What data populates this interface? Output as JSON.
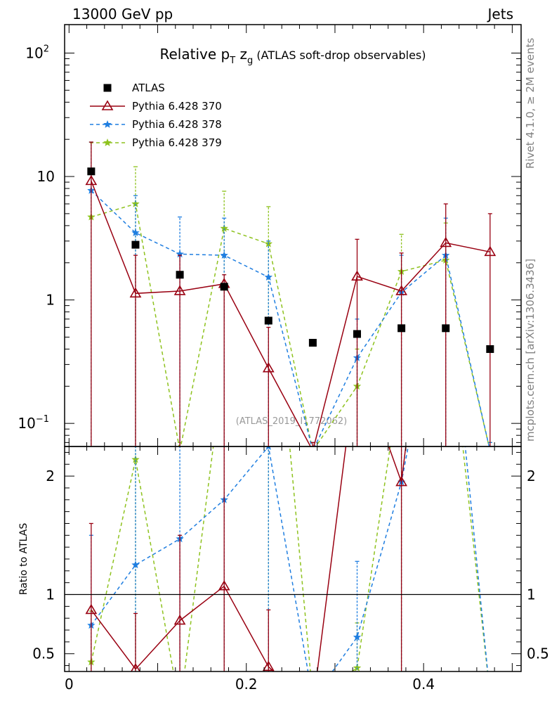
{
  "header": {
    "left": "13000 GeV pp",
    "right": "Jets"
  },
  "side_text": {
    "rivet": "Rivet 4.1.0, ≥ 2M events",
    "mcplots": "mcplots.cern.ch [arXiv:1306.3436]"
  },
  "colors": {
    "atlas": "#000000",
    "p370": "#990011",
    "p378": "#1f7ee0",
    "p379": "#8ec21e"
  },
  "chart_data": {
    "type": "scatter",
    "title": {
      "main": "Relative p",
      "sub": "T",
      "main2": " z",
      "sub2": "g",
      "rest": " (ATLAS soft-drop observables)"
    },
    "reference": "(ATLAS_2019_I1772062)",
    "xlim": [
      -0.005,
      0.51
    ],
    "x_ticks": [
      {
        "v": 0,
        "label": "0"
      },
      {
        "v": 0.2,
        "label": "0.2"
      },
      {
        "v": 0.4,
        "label": "0.4"
      }
    ],
    "top": {
      "scale": "log",
      "ylim": [
        0.065,
        170
      ],
      "y_tick_labels": [
        {
          "v": 0.1,
          "base": "10",
          "exp": "−1"
        },
        {
          "v": 1,
          "base": "1",
          "exp": ""
        },
        {
          "v": 10,
          "base": "10",
          "exp": ""
        },
        {
          "v": 100,
          "base": "10",
          "exp": "2"
        }
      ]
    },
    "ratio": {
      "ylabel": "Ratio to ATLAS",
      "ylim": [
        0.35,
        2.25
      ],
      "y_tick_labels": [
        {
          "v": 0.5,
          "label": "0.5"
        },
        {
          "v": 1,
          "label": "1"
        },
        {
          "v": 2,
          "label": "2"
        }
      ]
    },
    "x": [
      0.025,
      0.075,
      0.125,
      0.175,
      0.225,
      0.275,
      0.325,
      0.375,
      0.425,
      0.475
    ],
    "series": [
      {
        "key": "atlas",
        "name": "ATLAS",
        "marker": "square",
        "line": "none",
        "values": [
          11,
          2.8,
          1.6,
          1.28,
          0.68,
          0.45,
          0.53,
          0.59,
          0.59,
          0.4
        ],
        "err": [
          [
            0,
            0
          ],
          [
            0,
            0
          ],
          [
            0,
            0
          ],
          [
            0,
            0
          ],
          [
            0,
            0
          ],
          [
            0,
            0
          ],
          [
            0,
            0
          ],
          [
            0,
            0
          ],
          [
            0,
            0
          ],
          [
            0,
            0
          ]
        ],
        "ratio": [
          1,
          1,
          1,
          1,
          1,
          1,
          1,
          1,
          1,
          1
        ]
      },
      {
        "key": "p370",
        "name": "Pythia 6.428 370",
        "marker": "triangle",
        "line": "solid",
        "values": [
          9.2,
          1.13,
          1.18,
          1.35,
          0.28,
          0.06,
          1.55,
          1.18,
          2.9,
          2.45
        ],
        "err": [
          [
            0.01,
            19
          ],
          [
            0.01,
            2.3
          ],
          [
            0.01,
            2.3
          ],
          [
            0.01,
            1.6
          ],
          [
            0.01,
            0.6
          ],
          [
            0.05,
            0.07
          ],
          [
            0.01,
            3.1
          ],
          [
            0.01,
            2.4
          ],
          [
            0.01,
            6.0
          ],
          [
            0.01,
            5.0
          ]
        ],
        "ratio": [
          0.87,
          0.37,
          0.78,
          1.07,
          0.39,
          0.05,
          3.0,
          1.95,
          5.0,
          6.0
        ],
        "ratio_err": [
          [
            0.01,
            1.6
          ],
          [
            0.01,
            0.84
          ],
          [
            0.01,
            1.5
          ],
          [
            0.01,
            2.4
          ],
          [
            0.01,
            0.87
          ],
          null,
          null,
          [
            0.01,
            3.0
          ],
          null,
          null
        ]
      },
      {
        "key": "p378",
        "name": "Pythia 6.428 378",
        "marker": "star",
        "line": "dashed",
        "values": [
          7.7,
          3.5,
          2.35,
          2.3,
          1.53,
          0.06,
          0.34,
          1.15,
          2.3,
          0.06
        ],
        "err": [
          [
            0.01,
            19
          ],
          [
            0.01,
            7.0
          ],
          [
            0.01,
            4.7
          ],
          [
            0.01,
            4.6
          ],
          [
            0.01,
            3.0
          ],
          [
            0.05,
            0.07
          ],
          [
            0.01,
            0.7
          ],
          [
            0.01,
            2.3
          ],
          [
            0.01,
            4.6
          ],
          [
            0.05,
            0.07
          ]
        ],
        "ratio": [
          0.74,
          1.25,
          1.47,
          1.8,
          2.25,
          0.12,
          0.64,
          1.95,
          3.9,
          0.15
        ],
        "ratio_err": [
          [
            0.01,
            1.5
          ],
          [
            0.01,
            2.5
          ],
          [
            0.01,
            2.9
          ],
          [
            0.01,
            3.6
          ],
          [
            0.01,
            4.5
          ],
          null,
          [
            0.01,
            1.28
          ],
          [
            0.01,
            3.9
          ],
          null,
          null
        ]
      },
      {
        "key": "p379",
        "name": "Pythia 6.428 379",
        "marker": "star",
        "line": "dashed",
        "values": [
          4.7,
          6.0,
          0.06,
          3.8,
          2.85,
          0.06,
          0.2,
          1.7,
          2.1,
          0.06
        ],
        "err": [
          [
            0.01,
            19
          ],
          [
            0.01,
            12
          ],
          [
            0.05,
            0.07
          ],
          [
            0.01,
            7.6
          ],
          [
            0.01,
            5.7
          ],
          [
            0.05,
            0.07
          ],
          [
            0.01,
            0.4
          ],
          [
            0.01,
            3.4
          ],
          [
            0.01,
            4.2
          ],
          [
            0.05,
            0.07
          ]
        ],
        "ratio": [
          0.43,
          2.14,
          0.04,
          2.97,
          4.2,
          0.13,
          0.38,
          2.88,
          3.56,
          0.15
        ],
        "ratio_err": [
          [
            0.01,
            0.86
          ],
          [
            0.01,
            4.3
          ],
          null,
          [
            0.01,
            5.9
          ],
          [
            0.01,
            8.4
          ],
          null,
          [
            0.01,
            0.76
          ],
          [
            0.01,
            5.8
          ],
          null,
          null
        ]
      }
    ]
  }
}
